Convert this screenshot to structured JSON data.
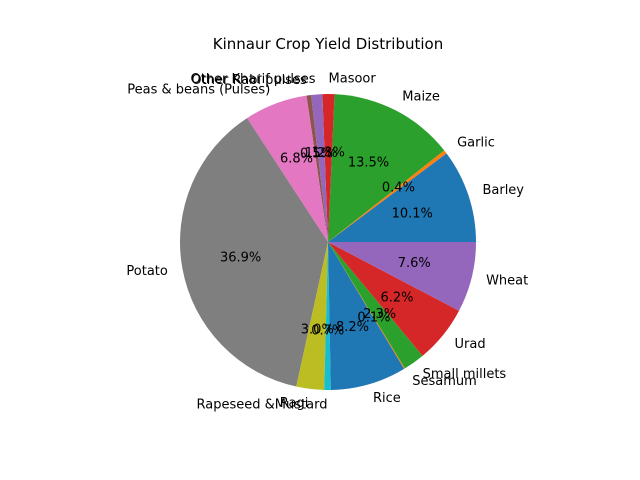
{
  "chart_data": {
    "type": "pie",
    "title": "Kinnaur Crop Yield Distribution",
    "start_angle_deg": 0,
    "direction": "counterclockwise",
    "slices": [
      {
        "label": "Barley",
        "value": 10.1,
        "pct_label": "10.1%",
        "color": "#1f77b4"
      },
      {
        "label": "Garlic",
        "value": 0.4,
        "pct_label": "0.4%",
        "color": "#ff7f0e"
      },
      {
        "label": "Maize",
        "value": 13.5,
        "pct_label": "13.5%",
        "color": "#2ca02c"
      },
      {
        "label": "Masoor",
        "value": 1.3,
        "pct_label": "1.3%",
        "color": "#d62728"
      },
      {
        "label": "Other Kharif pulses",
        "value": 1.2,
        "pct_label": "1.2%",
        "color": "#9467bd"
      },
      {
        "label": "Other Rabi pulses",
        "value": 0.5,
        "pct_label": "0.5%",
        "color": "#8c564b"
      },
      {
        "label": "Peas & beans (Pulses)",
        "value": 6.8,
        "pct_label": "6.8%",
        "color": "#e377c2"
      },
      {
        "label": "Potato",
        "value": 36.9,
        "pct_label": "36.9%",
        "color": "#7f7f7f"
      },
      {
        "label": "Ragi",
        "value": 3.0,
        "pct_label": "3.0%",
        "color": "#bcbd22"
      },
      {
        "label": "Rapeseed &Mustard",
        "value": 0.7,
        "pct_label": "0.7%",
        "color": "#17becf"
      },
      {
        "label": "Rice",
        "value": 8.2,
        "pct_label": "8.2%",
        "color": "#1f77b4"
      },
      {
        "label": "Sesamum",
        "value": 0.1,
        "pct_label": "0.1%",
        "color": "#ff7f0e"
      },
      {
        "label": "Small millets",
        "value": 2.3,
        "pct_label": "2.3%",
        "color": "#2ca02c"
      },
      {
        "label": "Urad",
        "value": 6.2,
        "pct_label": "6.2%",
        "color": "#d62728"
      },
      {
        "label": "Wheat",
        "value": 7.6,
        "pct_label": "7.6%",
        "color": "#9467bd"
      }
    ]
  }
}
